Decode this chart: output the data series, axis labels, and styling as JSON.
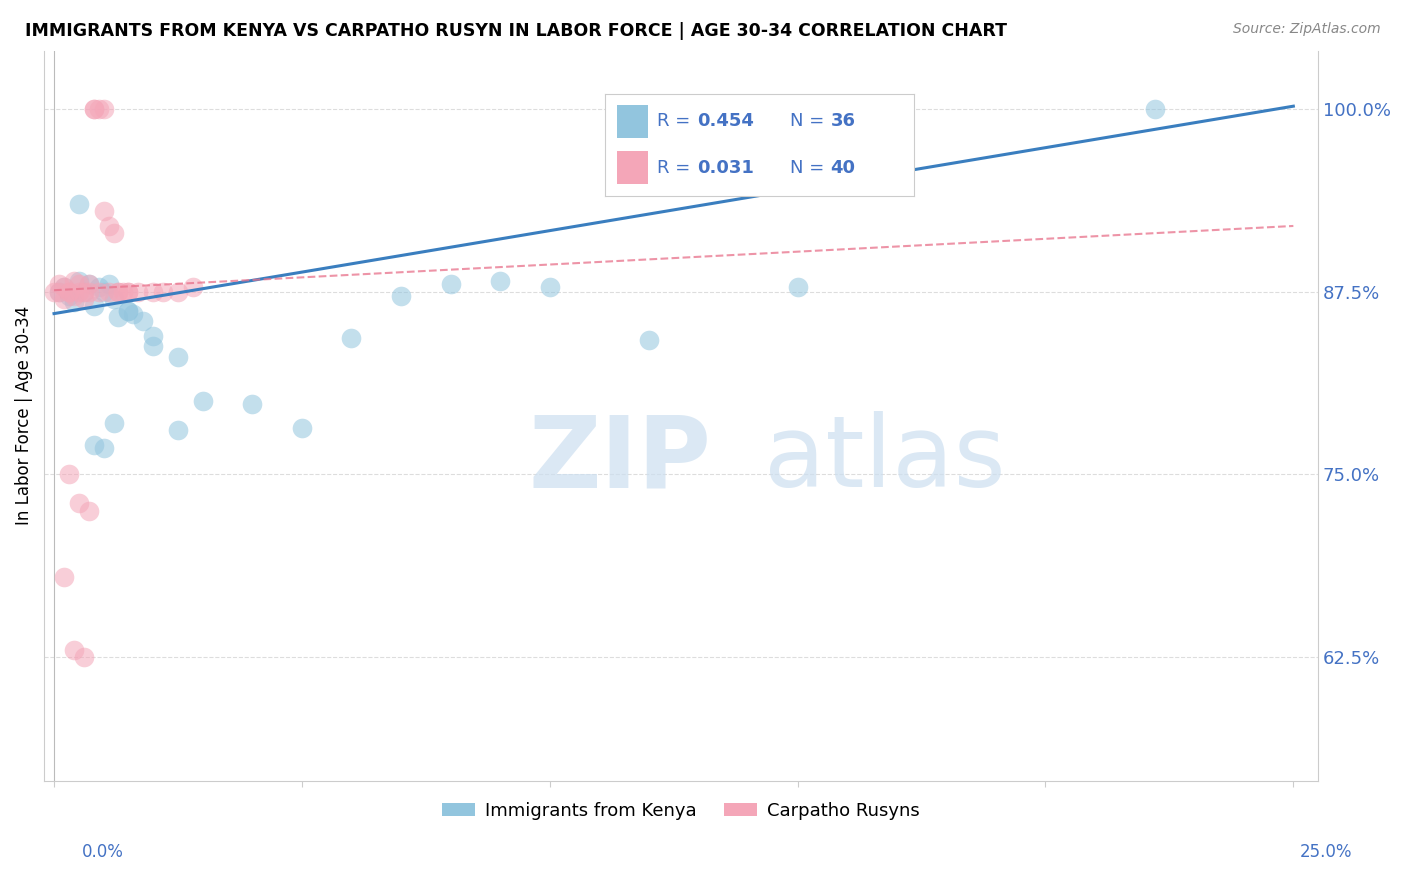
{
  "title": "IMMIGRANTS FROM KENYA VS CARPATHO RUSYN IN LABOR FORCE | AGE 30-34 CORRELATION CHART",
  "source": "Source: ZipAtlas.com",
  "ylabel": "In Labor Force | Age 30-34",
  "legend_label_blue": "Immigrants from Kenya",
  "legend_label_pink": "Carpatho Rusyns",
  "color_blue": "#92c5de",
  "color_pink": "#f4a6b8",
  "color_blue_line": "#3a7ebf",
  "color_pink_line": "#e8708a",
  "color_axis": "#4472c4",
  "xlim": [
    -0.002,
    0.255
  ],
  "ylim": [
    0.54,
    1.04
  ],
  "yticks": [
    0.625,
    0.75,
    0.875,
    1.0
  ],
  "ytick_labels": [
    "62.5%",
    "75.0%",
    "87.5%",
    "100.0%"
  ],
  "blue_x": [
    0.001,
    0.002,
    0.003,
    0.004,
    0.005,
    0.006,
    0.007,
    0.008,
    0.009,
    0.01,
    0.011,
    0.012,
    0.013,
    0.015,
    0.016,
    0.018,
    0.02,
    0.025,
    0.03,
    0.04,
    0.05,
    0.06,
    0.07,
    0.08,
    0.09,
    0.1,
    0.12,
    0.15,
    0.005,
    0.008,
    0.01,
    0.012,
    0.015,
    0.02,
    0.025,
    0.222
  ],
  "blue_y": [
    0.875,
    0.878,
    0.872,
    0.868,
    0.882,
    0.875,
    0.88,
    0.865,
    0.878,
    0.875,
    0.88,
    0.87,
    0.858,
    0.862,
    0.86,
    0.855,
    0.845,
    0.83,
    0.8,
    0.798,
    0.782,
    0.843,
    0.872,
    0.88,
    0.882,
    0.878,
    0.842,
    0.878,
    0.935,
    0.77,
    0.768,
    0.785,
    0.862,
    0.838,
    0.78,
    1.0
  ],
  "pink_x": [
    0.0,
    0.001,
    0.001,
    0.002,
    0.002,
    0.003,
    0.003,
    0.004,
    0.004,
    0.005,
    0.005,
    0.006,
    0.006,
    0.007,
    0.007,
    0.008,
    0.008,
    0.009,
    0.01,
    0.01,
    0.011,
    0.012,
    0.013,
    0.014,
    0.015,
    0.015,
    0.017,
    0.02,
    0.022,
    0.025,
    0.028,
    0.003,
    0.005,
    0.007,
    0.009,
    0.011,
    0.013,
    0.002,
    0.004,
    0.006
  ],
  "pink_y": [
    0.875,
    0.88,
    0.875,
    0.878,
    0.87,
    0.875,
    0.875,
    0.882,
    0.872,
    0.875,
    0.88,
    0.87,
    0.875,
    0.88,
    0.875,
    1.0,
    1.0,
    1.0,
    1.0,
    0.93,
    0.92,
    0.915,
    0.875,
    0.875,
    0.875,
    0.875,
    0.875,
    0.875,
    0.875,
    0.875,
    0.878,
    0.75,
    0.73,
    0.725,
    0.875,
    0.875,
    0.875,
    0.68,
    0.63,
    0.625
  ],
  "blue_trend_x": [
    0.0,
    0.25
  ],
  "blue_trend_y": [
    0.86,
    1.002
  ],
  "pink_trend_x": [
    0.0,
    0.25
  ],
  "pink_trend_y": [
    0.876,
    0.92
  ]
}
